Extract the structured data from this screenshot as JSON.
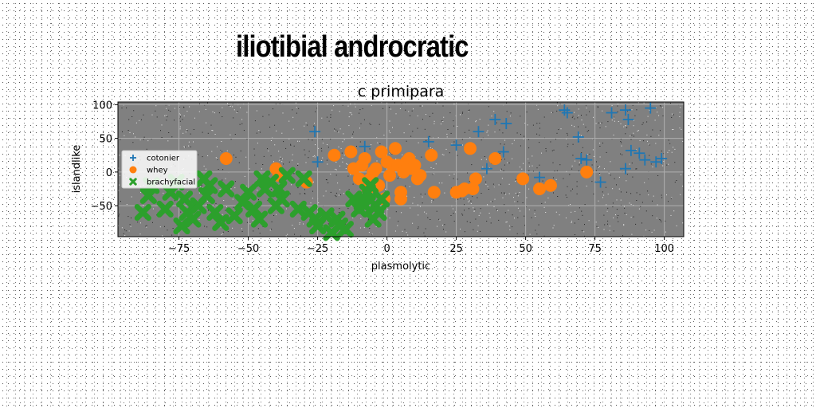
{
  "page": {
    "suptitle": "iliotibial androcratic"
  },
  "chart_data": {
    "type": "scatter",
    "title": "c primipara",
    "xlabel": "plasmolytic",
    "ylabel": "islandlike",
    "xlim": [
      -97,
      107
    ],
    "ylim": [
      -96,
      104
    ],
    "xticks": [
      -75,
      -50,
      -25,
      0,
      25,
      50,
      75,
      100
    ],
    "yticks": [
      -50,
      0,
      50,
      100
    ],
    "xtick_labels": [
      "−75",
      "−50",
      "−25",
      "0",
      "25",
      "50",
      "75",
      "100"
    ],
    "ytick_labels": [
      "−50",
      "0",
      "50",
      "100"
    ],
    "grid": true,
    "legend_position": "center-left",
    "colors": {
      "axes_bg": "#808080",
      "grid": "#b0b0b0",
      "cotonier": "#1f77b4",
      "whey": "#ff7f0e",
      "brachyfacial": "#2ca02c"
    },
    "series": [
      {
        "name": "cotonier",
        "marker": "plus",
        "x": [
          -26,
          -25,
          -8,
          15,
          25,
          33,
          36,
          39,
          43,
          42,
          65,
          64,
          69,
          70,
          72,
          77,
          81,
          86,
          87,
          86,
          88,
          91,
          93,
          95,
          97,
          99,
          55
        ],
        "y": [
          60,
          15,
          38,
          45,
          40,
          60,
          5,
          78,
          72,
          30,
          88,
          92,
          52,
          20,
          18,
          -15,
          88,
          92,
          78,
          5,
          32,
          28,
          18,
          95,
          15,
          20,
          -8
        ]
      },
      {
        "name": "whey",
        "marker": "circle",
        "x": [
          -58,
          -39,
          -40,
          -29,
          -19,
          -13,
          -12,
          -10,
          -9,
          -8,
          -7,
          -6,
          -5,
          -4,
          -3,
          -2,
          -1,
          0,
          1,
          2,
          3,
          4,
          5,
          5,
          6,
          7,
          8,
          9,
          10,
          11,
          12,
          16,
          17,
          25,
          27,
          28,
          30,
          31,
          32,
          39,
          49,
          55,
          59,
          72
        ],
        "y": [
          20,
          -5,
          5,
          -15,
          25,
          30,
          5,
          -10,
          10,
          20,
          -25,
          -10,
          0,
          5,
          -20,
          30,
          -40,
          15,
          -5,
          10,
          35,
          10,
          -30,
          -40,
          0,
          15,
          20,
          5,
          10,
          -10,
          -5,
          25,
          -30,
          -30,
          -28,
          -25,
          35,
          -25,
          -10,
          20,
          -10,
          -25,
          -20,
          0
        ]
      },
      {
        "name": "brachyfacial",
        "marker": "x",
        "x": [
          -88,
          -86,
          -85,
          -80,
          -78,
          -76,
          -74,
          -73,
          -72,
          -70,
          -68,
          -66,
          -65,
          -64,
          -62,
          -60,
          -58,
          -55,
          -52,
          -50,
          -48,
          -46,
          -45,
          -44,
          -42,
          -40,
          -39,
          -38,
          -36,
          -32,
          -30,
          -28,
          -26,
          -25,
          -22,
          -20,
          -18,
          -17,
          -15,
          -12,
          -10,
          -8,
          -7,
          -5,
          -4,
          -3,
          -2,
          -6,
          -9
        ],
        "y": [
          -60,
          -35,
          -20,
          -55,
          -30,
          -15,
          -80,
          -40,
          -60,
          -70,
          -50,
          -10,
          -35,
          -20,
          -60,
          -75,
          -25,
          -65,
          -45,
          -30,
          -55,
          -70,
          -10,
          -25,
          -15,
          -50,
          -25,
          -40,
          -5,
          -55,
          -10,
          -60,
          -70,
          -80,
          -65,
          -90,
          -70,
          -80,
          -85,
          -40,
          -55,
          -50,
          -30,
          -70,
          -50,
          -60,
          -40,
          -20,
          -45
        ]
      }
    ]
  }
}
